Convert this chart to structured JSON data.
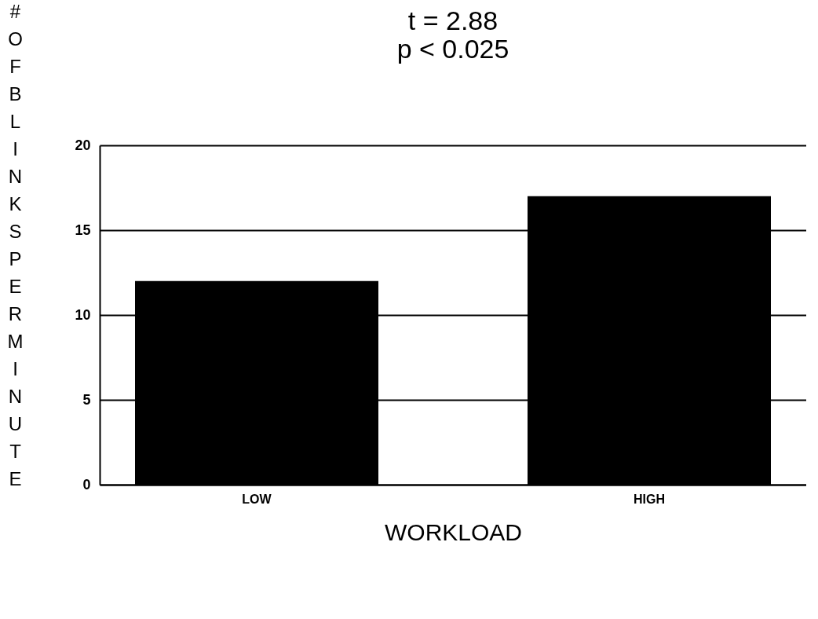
{
  "chart_data": {
    "type": "bar",
    "title": "t = 2.88",
    "subtitle": "p < 0.025",
    "xlabel": "WORKLOAD",
    "ylabel": "# OF BLINKS PER MINUTE",
    "categories": [
      "LOW",
      "HIGH"
    ],
    "values": [
      12,
      17
    ],
    "color": "#000000",
    "ylim": [
      0,
      20
    ],
    "yticks": [
      0,
      5,
      10,
      15,
      20
    ],
    "grid": "y"
  }
}
